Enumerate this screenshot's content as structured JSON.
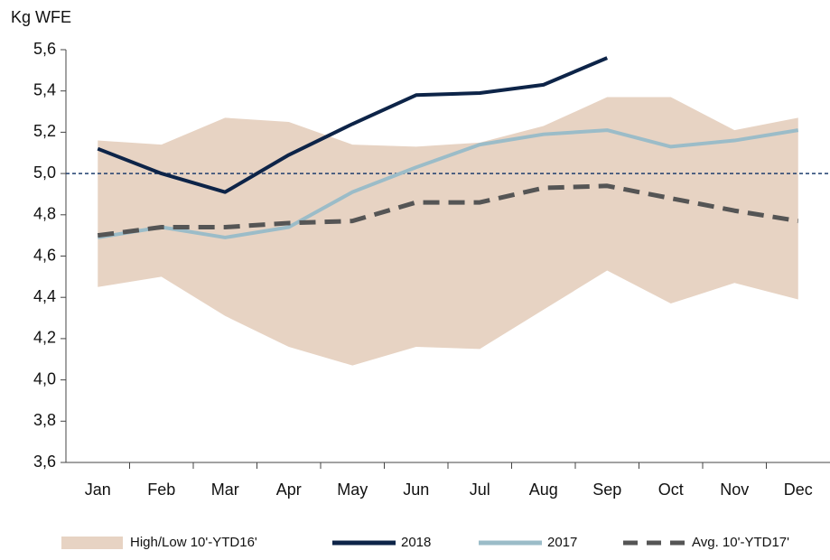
{
  "chart_data": {
    "type": "line",
    "y_axis_label": "Kg WFE",
    "categories": [
      "Jan",
      "Feb",
      "Mar",
      "Apr",
      "May",
      "Jun",
      "Jul",
      "Aug",
      "Sep",
      "Oct",
      "Nov",
      "Dec"
    ],
    "ylim": [
      3.6,
      5.6
    ],
    "yticks": [
      {
        "value": 3.6,
        "label": "3,6"
      },
      {
        "value": 3.8,
        "label": "3,8"
      },
      {
        "value": 4.0,
        "label": "4,0"
      },
      {
        "value": 4.2,
        "label": "4,2"
      },
      {
        "value": 4.4,
        "label": "4,4"
      },
      {
        "value": 4.6,
        "label": "4,6"
      },
      {
        "value": 4.8,
        "label": "4,8"
      },
      {
        "value": 5.0,
        "label": "5,0"
      },
      {
        "value": 5.2,
        "label": "5,2"
      },
      {
        "value": 5.4,
        "label": "5,4"
      },
      {
        "value": 5.6,
        "label": "5,6"
      }
    ],
    "reference_line": {
      "value": 5.0,
      "color": "#1f3e6e"
    },
    "series": [
      {
        "name": "High/Low 10'-YTD16'",
        "type": "range",
        "color": "#e7d3c3",
        "high": [
          5.16,
          5.14,
          5.27,
          5.25,
          5.14,
          5.13,
          5.15,
          5.23,
          5.37,
          5.37,
          5.21,
          5.27
        ],
        "low": [
          4.45,
          4.5,
          4.31,
          4.16,
          4.07,
          4.16,
          4.15,
          4.34,
          4.53,
          4.37,
          4.47,
          4.39
        ]
      },
      {
        "name": "2018",
        "type": "line",
        "color": "#0d2448",
        "values": [
          5.12,
          5.0,
          4.91,
          5.09,
          5.24,
          5.38,
          5.39,
          5.43,
          5.56,
          null,
          null,
          null
        ]
      },
      {
        "name": "2017",
        "type": "line",
        "color": "#9bbcc8",
        "values": [
          4.69,
          4.74,
          4.69,
          4.74,
          4.91,
          5.03,
          5.14,
          5.19,
          5.21,
          5.13,
          5.16,
          5.21
        ]
      },
      {
        "name": "Avg. 10'-YTD17'",
        "type": "line",
        "dashed": true,
        "color": "#555555",
        "values": [
          4.7,
          4.74,
          4.74,
          4.76,
          4.77,
          4.86,
          4.86,
          4.93,
          4.94,
          4.88,
          4.82,
          4.77
        ]
      }
    ]
  }
}
